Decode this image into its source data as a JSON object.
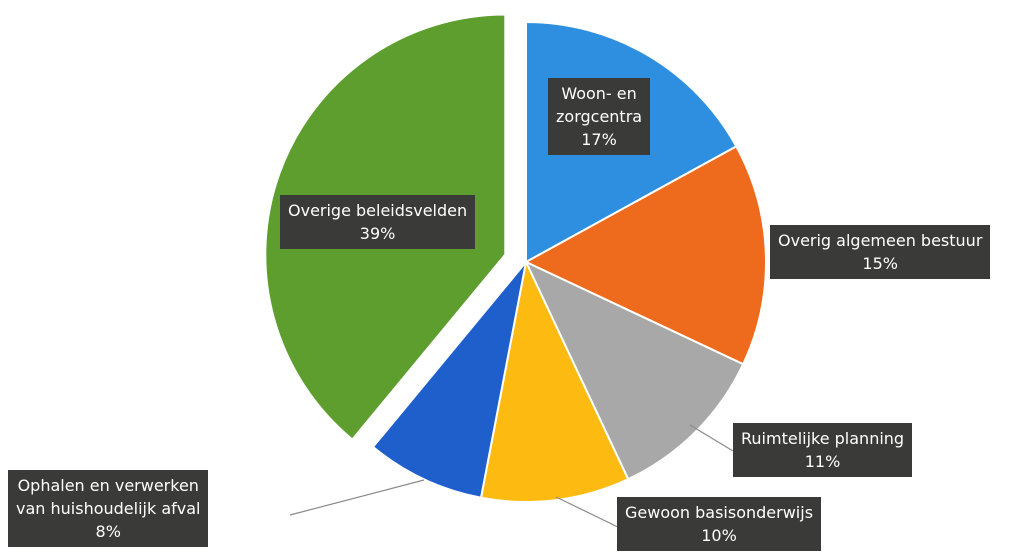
{
  "chart_data": {
    "type": "pie",
    "slices": [
      {
        "label": "Woon- en zorgcentra",
        "label_lines": [
          "Woon- en",
          "zorgcentra"
        ],
        "value": 17,
        "value_text": "17%",
        "color": "#2e8fe0"
      },
      {
        "label": "Overig algemeen bestuur",
        "label_lines": [
          "Overig algemeen bestuur"
        ],
        "value": 15,
        "value_text": "15%",
        "color": "#ee6a1c"
      },
      {
        "label": "Ruimtelijke planning",
        "label_lines": [
          "Ruimtelijke planning"
        ],
        "value": 11,
        "value_text": "11%",
        "color": "#a8a8a8"
      },
      {
        "label": "Gewoon basisonderwijs",
        "label_lines": [
          "Gewoon basisonderwijs"
        ],
        "value": 10,
        "value_text": "10%",
        "color": "#fdbb12"
      },
      {
        "label": "Ophalen en verwerken van huishoudelijk afval",
        "label_lines": [
          "Ophalen en verwerken",
          "van huishoudelijk afval"
        ],
        "value": 8,
        "value_text": "8%",
        "color": "#1f5fcc"
      },
      {
        "label": "Overige beleidsvelden",
        "label_lines": [
          "Overige beleidsvelden"
        ],
        "value": 39,
        "value_text": "39%",
        "color": "#5e9e2f",
        "exploded": true
      }
    ],
    "start_angle_deg": 0,
    "direction": "clockwise",
    "legend": "none",
    "title": ""
  }
}
